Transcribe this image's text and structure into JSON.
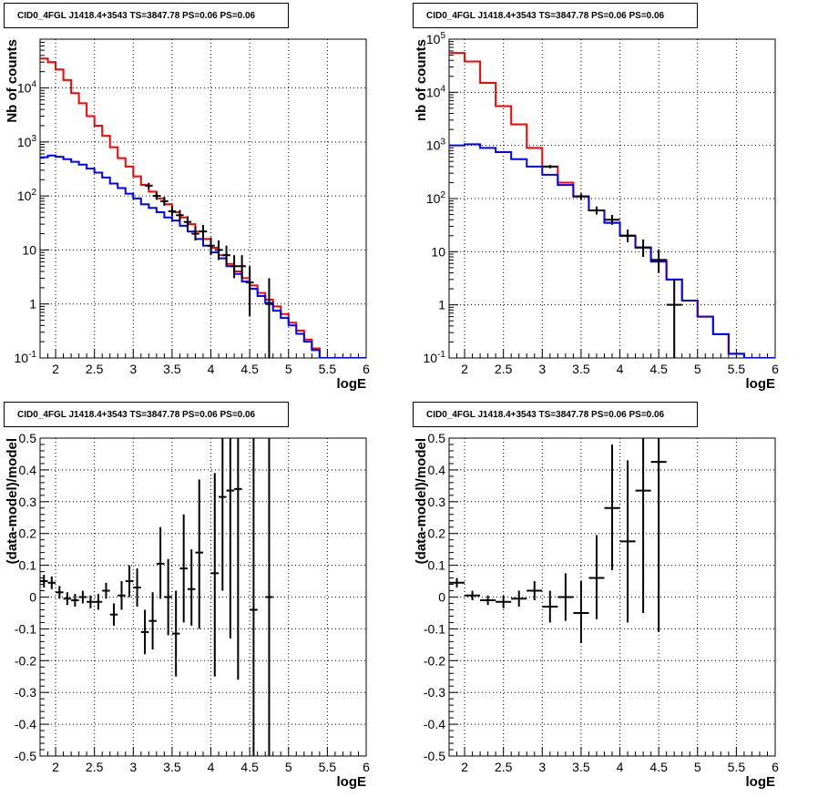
{
  "colors": {
    "data": "#000000",
    "total_model": "#ff0000",
    "source_model": "#0000ff"
  },
  "chart_data": [
    {
      "panel": "top-left",
      "type": "line",
      "title": "CID0_4FGL J1418.4+3543 TS=3847.78 PS=0.06 PS=0.06",
      "xlabel": "logE",
      "ylabel": "Nb of counts",
      "xlim": [
        1.8,
        6.0
      ],
      "ylim": [
        0.1,
        80000
      ],
      "ylog": true,
      "grid": true,
      "x_ticks": [
        "2",
        "2.5",
        "3",
        "3.5",
        "4",
        "4.5",
        "5",
        "5.5",
        "6"
      ],
      "y_ticks": [
        "10^-1",
        "1",
        "10",
        "10^2",
        "10^3",
        "10^4"
      ],
      "bin_edges": [
        1.8,
        1.9,
        2.0,
        2.1,
        2.2,
        2.3,
        2.4,
        2.5,
        2.6,
        2.7,
        2.8,
        2.9,
        3.0,
        3.1,
        3.2,
        3.3,
        3.4,
        3.5,
        3.6,
        3.7,
        3.8,
        3.9,
        4.0,
        4.1,
        4.2,
        4.3,
        4.4,
        4.5,
        4.6,
        4.7,
        4.8,
        4.9,
        5.0,
        5.1,
        5.2,
        5.3,
        5.4,
        5.5,
        5.6,
        5.7,
        5.8,
        5.9,
        6.0
      ],
      "series": [
        {
          "name": "",
          "role": "total-model",
          "color": "#ff0000",
          "values": [
            35000,
            30000,
            22000,
            14000,
            8000,
            5200,
            3000,
            2000,
            1300,
            800,
            500,
            350,
            230,
            160,
            120,
            90,
            70,
            50,
            40,
            30,
            22,
            16,
            11,
            8,
            5.5,
            4,
            3,
            2.2,
            1.6,
            1.2,
            0.9,
            0.65,
            0.45,
            0.32,
            0.22,
            0.15,
            0.1,
            0.1,
            0.1,
            0.1,
            0.1,
            0.1
          ]
        },
        {
          "name": "",
          "role": "source-model",
          "color": "#0000ff",
          "values": [
            520,
            560,
            530,
            480,
            430,
            380,
            320,
            270,
            220,
            170,
            140,
            110,
            90,
            70,
            60,
            50,
            40,
            35,
            28,
            22,
            16,
            12,
            9,
            7,
            5,
            3.6,
            2.6,
            1.9,
            1.4,
            1.05,
            0.75,
            0.55,
            0.4,
            0.28,
            0.2,
            0.14,
            0.1,
            0.1,
            0.1,
            0.1,
            0.1,
            0.1
          ]
        },
        {
          "name": "",
          "role": "data",
          "color": "#000000",
          "points": [
            {
              "x": 3.2,
              "y": 155,
              "ex": 0.05,
              "lo": 135,
              "hi": 175
            },
            {
              "x": 3.3,
              "y": 100,
              "ex": 0.05,
              "lo": 85,
              "hi": 117
            },
            {
              "x": 3.4,
              "y": 80,
              "ex": 0.05,
              "lo": 66,
              "hi": 96
            },
            {
              "x": 3.5,
              "y": 52,
              "ex": 0.05,
              "lo": 42,
              "hi": 64
            },
            {
              "x": 3.6,
              "y": 44,
              "ex": 0.05,
              "lo": 35,
              "hi": 55
            },
            {
              "x": 3.7,
              "y": 33,
              "ex": 0.05,
              "lo": 25,
              "hi": 42
            },
            {
              "x": 3.8,
              "y": 20,
              "ex": 0.05,
              "lo": 15,
              "hi": 27
            },
            {
              "x": 3.9,
              "y": 22,
              "ex": 0.05,
              "lo": 16,
              "hi": 29
            },
            {
              "x": 4.0,
              "y": 12,
              "ex": 0.05,
              "lo": 8,
              "hi": 17
            },
            {
              "x": 4.1,
              "y": 10,
              "ex": 0.05,
              "lo": 6.5,
              "hi": 15
            },
            {
              "x": 4.2,
              "y": 8,
              "ex": 0.05,
              "lo": 5,
              "hi": 12
            },
            {
              "x": 4.3,
              "y": 5,
              "ex": 0.05,
              "lo": 3,
              "hi": 8
            },
            {
              "x": 4.4,
              "y": 5,
              "ex": 0.05,
              "lo": 3,
              "hi": 8
            },
            {
              "x": 4.5,
              "y": 2.5,
              "ex": 0.05,
              "lo": 0.6,
              "hi": 5
            },
            {
              "x": 4.75,
              "y": 1,
              "ex": 0.05,
              "lo": 0.1,
              "hi": 3
            }
          ]
        }
      ]
    },
    {
      "panel": "top-right",
      "type": "line",
      "title": "CID0_4FGL J1418.4+3543 TS=3847.78 PS=0.06 PS=0.06",
      "xlabel": "logE",
      "ylabel": "nb of counts",
      "xlim": [
        1.8,
        6.0
      ],
      "ylim": [
        0.1,
        100000
      ],
      "ylog": true,
      "grid": true,
      "x_ticks": [
        "2",
        "2.5",
        "3",
        "3.5",
        "4",
        "4.5",
        "5",
        "5.5",
        "6"
      ],
      "y_ticks": [
        "10^-1",
        "1",
        "10",
        "10^2",
        "10^3",
        "10^4",
        "10^5"
      ],
      "bin_edges": [
        1.8,
        2.0,
        2.2,
        2.4,
        2.6,
        2.8,
        3.0,
        3.2,
        3.4,
        3.6,
        3.8,
        4.0,
        4.2,
        4.4,
        4.6,
        4.8,
        5.0,
        5.2,
        5.4,
        5.6,
        5.8,
        6.0
      ],
      "series": [
        {
          "name": "",
          "role": "total-model",
          "color": "#ff0000",
          "values": [
            55000,
            38000,
            15000,
            5500,
            2500,
            900,
            400,
            200,
            110,
            60,
            35,
            20,
            12,
            7,
            3,
            1.2,
            0.6,
            0.28,
            0.12,
            0.1,
            0.1
          ]
        },
        {
          "name": "",
          "role": "source-model",
          "color": "#0000ff",
          "values": [
            1000,
            1050,
            900,
            750,
            550,
            400,
            280,
            180,
            110,
            60,
            35,
            20,
            12,
            6.5,
            3,
            1.2,
            0.6,
            0.28,
            0.12,
            0.1,
            0.1
          ]
        },
        {
          "name": "",
          "role": "data",
          "color": "#000000",
          "points": [
            {
              "x": 3.1,
              "y": 400,
              "ex": 0.1,
              "lo": 370,
              "hi": 430
            },
            {
              "x": 3.5,
              "y": 110,
              "ex": 0.1,
              "lo": 95,
              "hi": 125
            },
            {
              "x": 3.7,
              "y": 60,
              "ex": 0.1,
              "lo": 50,
              "hi": 71
            },
            {
              "x": 3.9,
              "y": 40,
              "ex": 0.1,
              "lo": 32,
              "hi": 49
            },
            {
              "x": 4.1,
              "y": 20,
              "ex": 0.1,
              "lo": 15,
              "hi": 26
            },
            {
              "x": 4.3,
              "y": 12,
              "ex": 0.1,
              "lo": 8,
              "hi": 17
            },
            {
              "x": 4.5,
              "y": 7,
              "ex": 0.1,
              "lo": 4,
              "hi": 11
            },
            {
              "x": 4.7,
              "y": 1,
              "ex": 0.1,
              "lo": 0.1,
              "hi": 3
            }
          ]
        }
      ]
    },
    {
      "panel": "bottom-left",
      "type": "scatter",
      "title": "CID0_4FGL J1418.4+3543 TS=3847.78 PS=0.06 PS=0.06",
      "xlabel": "logE",
      "ylabel": "(data-model)/model",
      "xlim": [
        1.8,
        6.0
      ],
      "ylim": [
        -0.5,
        0.5
      ],
      "grid": true,
      "x_ticks": [
        "2",
        "2.5",
        "3",
        "3.5",
        "4",
        "4.5",
        "5",
        "5.5",
        "6"
      ],
      "y_ticks": [
        "-0.5",
        "-0.4",
        "-0.3",
        "-0.2",
        "-0.1",
        "0",
        "0.1",
        "0.2",
        "0.3",
        "0.4",
        "0.5"
      ],
      "series": [
        {
          "name": "",
          "role": "data",
          "color": "#000000",
          "points": [
            {
              "x": 1.85,
              "y": 0.05,
              "ex": 0.05,
              "lo": 0.03,
              "hi": 0.07
            },
            {
              "x": 1.95,
              "y": 0.045,
              "ex": 0.05,
              "lo": 0.025,
              "hi": 0.065
            },
            {
              "x": 2.05,
              "y": 0.015,
              "ex": 0.05,
              "lo": -0.005,
              "hi": 0.035
            },
            {
              "x": 2.15,
              "y": -0.005,
              "ex": 0.05,
              "lo": -0.025,
              "hi": 0.015
            },
            {
              "x": 2.25,
              "y": -0.01,
              "ex": 0.05,
              "lo": -0.03,
              "hi": 0.01
            },
            {
              "x": 2.35,
              "y": 0.0,
              "ex": 0.05,
              "lo": -0.02,
              "hi": 0.02
            },
            {
              "x": 2.45,
              "y": -0.015,
              "ex": 0.05,
              "lo": -0.035,
              "hi": 0.005
            },
            {
              "x": 2.55,
              "y": -0.015,
              "ex": 0.05,
              "lo": -0.04,
              "hi": 0.01
            },
            {
              "x": 2.65,
              "y": 0.02,
              "ex": 0.05,
              "lo": -0.005,
              "hi": 0.045
            },
            {
              "x": 2.75,
              "y": -0.055,
              "ex": 0.05,
              "lo": -0.09,
              "hi": -0.02
            },
            {
              "x": 2.85,
              "y": 0.005,
              "ex": 0.05,
              "lo": -0.04,
              "hi": 0.05
            },
            {
              "x": 2.95,
              "y": 0.05,
              "ex": 0.05,
              "lo": 0.0,
              "hi": 0.1
            },
            {
              "x": 3.05,
              "y": 0.03,
              "ex": 0.05,
              "lo": -0.03,
              "hi": 0.09
            },
            {
              "x": 3.15,
              "y": -0.11,
              "ex": 0.05,
              "lo": -0.18,
              "hi": -0.04
            },
            {
              "x": 3.25,
              "y": -0.075,
              "ex": 0.05,
              "lo": -0.165,
              "hi": 0.015
            },
            {
              "x": 3.35,
              "y": 0.105,
              "ex": 0.05,
              "lo": -0.005,
              "hi": 0.22
            },
            {
              "x": 3.45,
              "y": 0.0,
              "ex": 0.05,
              "lo": -0.12,
              "hi": 0.12
            },
            {
              "x": 3.55,
              "y": -0.115,
              "ex": 0.05,
              "lo": -0.25,
              "hi": 0.02
            },
            {
              "x": 3.65,
              "y": 0.09,
              "ex": 0.05,
              "lo": -0.08,
              "hi": 0.26
            },
            {
              "x": 3.75,
              "y": 0.025,
              "ex": 0.05,
              "lo": -0.09,
              "hi": 0.15
            },
            {
              "x": 3.85,
              "y": 0.14,
              "ex": 0.05,
              "lo": -0.1,
              "hi": 0.37
            },
            {
              "x": 4.05,
              "y": 0.075,
              "ex": 0.05,
              "lo": -0.25,
              "hi": 0.39
            },
            {
              "x": 4.15,
              "y": 0.315,
              "ex": 0.05,
              "lo": 0.02,
              "hi": 0.5
            },
            {
              "x": 4.25,
              "y": 0.335,
              "ex": 0.05,
              "lo": -0.13,
              "hi": 0.5
            },
            {
              "x": 4.35,
              "y": 0.34,
              "ex": 0.05,
              "lo": -0.26,
              "hi": 0.5
            },
            {
              "x": 4.55,
              "y": -0.04,
              "ex": 0.05,
              "lo": -0.5,
              "hi": 0.5
            },
            {
              "x": 4.75,
              "y": 0.0,
              "ex": 0.05,
              "lo": -0.5,
              "hi": 0.5
            }
          ]
        }
      ]
    },
    {
      "panel": "bottom-right",
      "type": "scatter",
      "title": "CID0_4FGL J1418.4+3543 TS=3847.78 PS=0.06 PS=0.06",
      "xlabel": "logE",
      "ylabel": "(data-model)/model",
      "xlim": [
        1.8,
        6.0
      ],
      "ylim": [
        -0.5,
        0.5
      ],
      "grid": true,
      "x_ticks": [
        "2",
        "2.5",
        "3",
        "3.5",
        "4",
        "4.5",
        "5",
        "5.5",
        "6"
      ],
      "y_ticks": [
        "-0.5",
        "-0.4",
        "-0.3",
        "-0.2",
        "-0.1",
        "0",
        "0.1",
        "0.2",
        "0.3",
        "0.4",
        "0.5"
      ],
      "series": [
        {
          "name": "",
          "role": "data",
          "color": "#000000",
          "points": [
            {
              "x": 1.9,
              "y": 0.045,
              "ex": 0.1,
              "lo": 0.03,
              "hi": 0.06
            },
            {
              "x": 2.1,
              "y": 0.005,
              "ex": 0.1,
              "lo": -0.01,
              "hi": 0.02
            },
            {
              "x": 2.3,
              "y": -0.01,
              "ex": 0.1,
              "lo": -0.025,
              "hi": 0.005
            },
            {
              "x": 2.5,
              "y": -0.015,
              "ex": 0.1,
              "lo": -0.035,
              "hi": 0.005
            },
            {
              "x": 2.7,
              "y": -0.005,
              "ex": 0.1,
              "lo": -0.03,
              "hi": 0.02
            },
            {
              "x": 2.9,
              "y": 0.02,
              "ex": 0.1,
              "lo": -0.01,
              "hi": 0.05
            },
            {
              "x": 3.1,
              "y": -0.03,
              "ex": 0.1,
              "lo": -0.08,
              "hi": 0.02
            },
            {
              "x": 3.3,
              "y": 0.0,
              "ex": 0.1,
              "lo": -0.075,
              "hi": 0.075
            },
            {
              "x": 3.5,
              "y": -0.05,
              "ex": 0.1,
              "lo": -0.145,
              "hi": 0.05
            },
            {
              "x": 3.7,
              "y": 0.06,
              "ex": 0.1,
              "lo": -0.07,
              "hi": 0.195
            },
            {
              "x": 3.9,
              "y": 0.28,
              "ex": 0.1,
              "lo": 0.085,
              "hi": 0.48
            },
            {
              "x": 4.1,
              "y": 0.175,
              "ex": 0.1,
              "lo": -0.08,
              "hi": 0.43
            },
            {
              "x": 4.3,
              "y": 0.335,
              "ex": 0.1,
              "lo": -0.05,
              "hi": 0.5
            },
            {
              "x": 4.5,
              "y": 0.425,
              "ex": 0.1,
              "lo": -0.11,
              "hi": 0.5
            }
          ]
        }
      ]
    }
  ]
}
